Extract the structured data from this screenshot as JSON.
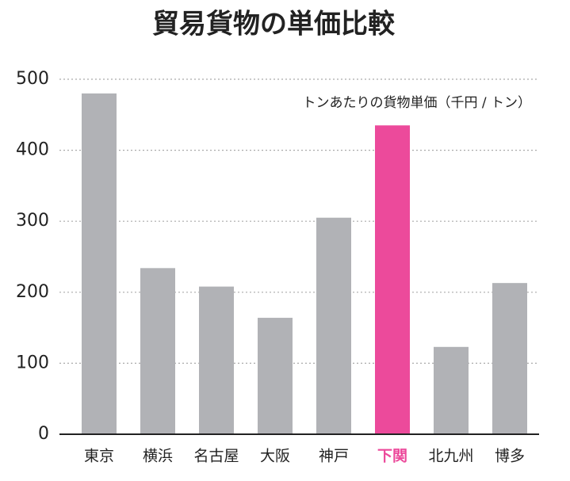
{
  "chart_data": {
    "type": "bar",
    "title": "貿易貨物の単価比較",
    "annotation": "トンあたりの貨物単価（千円 / トン）",
    "categories": [
      "東京",
      "横浜",
      "名古屋",
      "大阪",
      "神戸",
      "下関",
      "北九州",
      "博多"
    ],
    "values": [
      480,
      234,
      208,
      164,
      305,
      435,
      123,
      213
    ],
    "colors": [
      "#b1b2b6",
      "#b1b2b6",
      "#b1b2b6",
      "#b1b2b6",
      "#b1b2b6",
      "#ec4a9b",
      "#b1b2b6",
      "#b1b2b6"
    ],
    "ylim": [
      0,
      500
    ],
    "yticks": [
      0,
      100,
      200,
      300,
      400,
      500
    ],
    "grid": true
  }
}
